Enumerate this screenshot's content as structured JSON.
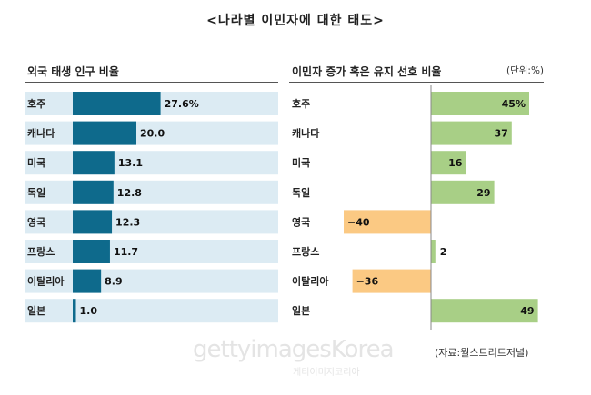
{
  "title": "<나라별 이민자에 대한 태도>",
  "source": "(자료:월스트리트저널)",
  "watermark": {
    "brand": "gettyimagesKorea",
    "sub": "게티이미지코리아"
  },
  "colors": {
    "left_bar": "#0e6a8c",
    "left_track": "#dcebf3",
    "positive_bar": "#a8cf86",
    "negative_bar": "#fbc983",
    "axis": "#888888"
  },
  "chart_data": [
    {
      "type": "bar",
      "orientation": "horizontal",
      "title": "외국 태생 인구 비율",
      "categories": [
        "호주",
        "캐나다",
        "미국",
        "독일",
        "영국",
        "프랑스",
        "이탈리아",
        "일본"
      ],
      "values": [
        27.6,
        20.0,
        13.1,
        12.8,
        12.3,
        11.7,
        8.9,
        1.0
      ],
      "labels": [
        "27.6%",
        "20.0",
        "13.1",
        "12.8",
        "12.3",
        "11.7",
        "8.9",
        "1.0"
      ],
      "xlim": [
        0,
        64
      ],
      "grid": false,
      "background_track": true
    },
    {
      "type": "bar",
      "orientation": "horizontal",
      "title": "이민자 증가 혹은 유지 선호 비율",
      "unit": "(단위:%)",
      "categories": [
        "호주",
        "캐나다",
        "미국",
        "독일",
        "영국",
        "프랑스",
        "이탈리아",
        "일본"
      ],
      "values": [
        45,
        37,
        16,
        29,
        -40,
        2,
        -36,
        49
      ],
      "labels": [
        "45%",
        "37",
        "16",
        "29",
        "−40",
        "2",
        "−36",
        "49"
      ],
      "xlim": [
        -40,
        50
      ],
      "grid": false
    }
  ]
}
